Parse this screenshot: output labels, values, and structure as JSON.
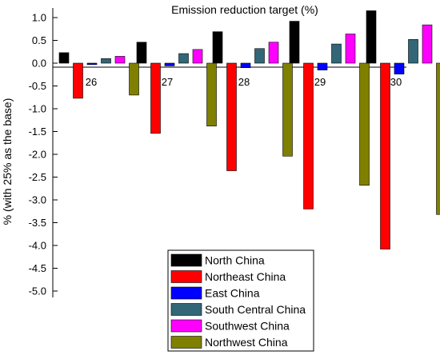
{
  "chart_data": {
    "type": "bar",
    "title": "Emission reduction target (%)",
    "ylabel": "% (with 25% as the base)",
    "xlabel": "",
    "categories": [
      "26",
      "27",
      "28",
      "29",
      "30"
    ],
    "ylim": [
      -5.0,
      1.2
    ],
    "yticks": [
      1.0,
      0.5,
      0.0,
      -0.5,
      -1.0,
      -1.5,
      -2.0,
      -2.5,
      -3.0,
      -3.5,
      -4.0,
      -4.5,
      -5.0
    ],
    "ytick_labels": [
      "1.0",
      "0.5",
      "0.0",
      "-0.5",
      "-1.0",
      "-1.5",
      "-2.0",
      "-2.5",
      "-3.0",
      "-3.5",
      "-4.0",
      "-4.5",
      "-5.0"
    ],
    "grid": false,
    "legend_position": "bottom-right",
    "series": [
      {
        "name": "North China",
        "color": "#000000",
        "values": [
          0.23,
          0.46,
          0.69,
          0.92,
          1.15
        ]
      },
      {
        "name": "Northeast China",
        "color": "#ff0000",
        "values": [
          -0.77,
          -1.54,
          -2.36,
          -3.2,
          -4.08
        ]
      },
      {
        "name": "East China",
        "color": "#0000ff",
        "values": [
          -0.03,
          -0.06,
          -0.1,
          -0.15,
          -0.24
        ]
      },
      {
        "name": "South Central China",
        "color": "#336677",
        "values": [
          0.1,
          0.21,
          0.32,
          0.42,
          0.52
        ]
      },
      {
        "name": "Southwest China",
        "color": "#ff00ff",
        "values": [
          0.15,
          0.3,
          0.46,
          0.64,
          0.84
        ]
      },
      {
        "name": "Northwest China",
        "color": "#808000",
        "values": [
          -0.7,
          -1.38,
          -2.04,
          -2.68,
          -3.32
        ]
      }
    ]
  }
}
